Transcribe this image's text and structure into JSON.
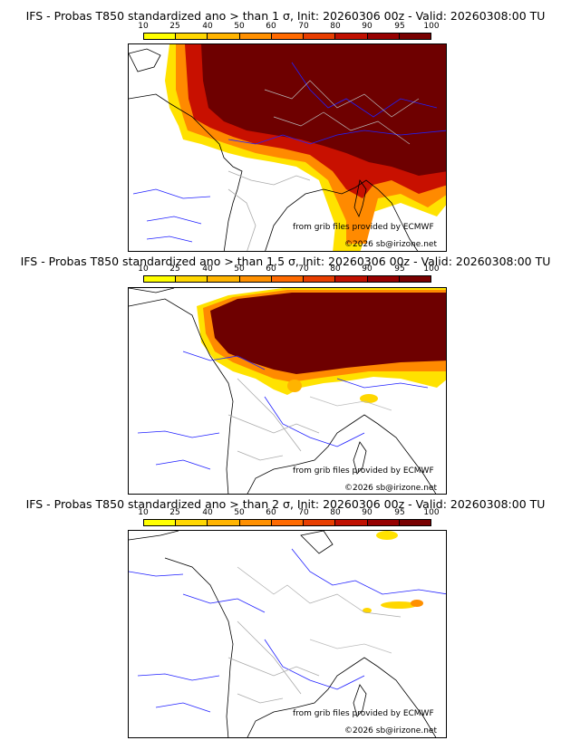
{
  "colorbar": {
    "ticks": [
      "10",
      "25",
      "40",
      "50",
      "60",
      "70",
      "80",
      "90",
      "95",
      "100"
    ],
    "colors": [
      "#ffff00",
      "#ffd700",
      "#ffb400",
      "#ff9000",
      "#ff6a00",
      "#e83e00",
      "#c01000",
      "#960000",
      "#780000"
    ]
  },
  "panels": [
    {
      "title": "IFS - Probas T850  standardized ano > than 1 σ, Init: 20260306 00z - Valid: 20260308:00 TU",
      "credit_grib": "from grib files provided by ECMWF",
      "credit_site": "©2026 sb@irizone.net"
    },
    {
      "title": "IFS - Probas T850  standardized ano > than 1.5 σ, Init: 20260306 00z - Valid: 20260308:00 TU",
      "credit_grib": "from grib files provided by ECMWF",
      "credit_site": "©2026 sb@irizone.net"
    },
    {
      "title": "IFS - Probas T850  standardized ano > than 2 σ, Init: 20260306 00z - Valid: 20260308:00 TU",
      "credit_grib": "from grib files provided by ECMWF",
      "credit_site": "©2026 sb@irizone.net"
    }
  ]
}
